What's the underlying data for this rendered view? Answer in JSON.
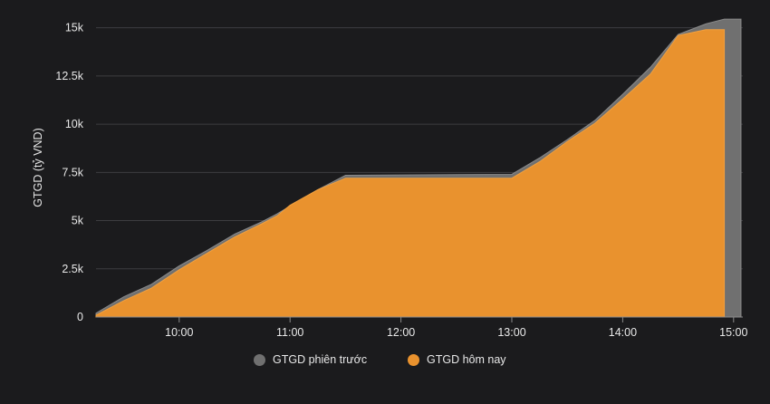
{
  "chart_data": {
    "type": "area",
    "ylabel": "GTGD (tỷ VND)",
    "y_ticks": [
      "0",
      "2.5k",
      "5k",
      "7.5k",
      "10k",
      "12.5k",
      "15k"
    ],
    "y_tick_values": [
      0,
      2500,
      5000,
      7500,
      10000,
      12500,
      15000
    ],
    "x_ticks": [
      "10:00",
      "11:00",
      "12:00",
      "13:00",
      "14:00",
      "15:00"
    ],
    "x_tick_values": [
      "10:00",
      "11:00",
      "12:00",
      "13:00",
      "14:00",
      "15:00"
    ],
    "x_range": [
      "09:15",
      "15:05"
    ],
    "y_range": [
      0,
      15500
    ],
    "grid": true,
    "legend_position": "bottom",
    "series": [
      {
        "name": "GTGD phiên trước",
        "color": "#707070",
        "x": [
          "09:15",
          "09:30",
          "09:45",
          "10:00",
          "10:15",
          "10:30",
          "10:45",
          "10:53",
          "11:00",
          "11:15",
          "11:30",
          "13:00",
          "13:15",
          "13:30",
          "13:45",
          "14:00",
          "14:15",
          "14:30",
          "14:45",
          "14:55",
          "14:56",
          "15:00",
          "15:04"
        ],
        "y": [
          200,
          1050,
          1700,
          2650,
          3450,
          4300,
          4950,
          5350,
          5750,
          6600,
          7350,
          7400,
          8250,
          9200,
          10200,
          11550,
          12950,
          14650,
          15200,
          15450,
          15450,
          15450,
          15450
        ]
      },
      {
        "name": "GTGD hôm nay",
        "color": "#e9922e",
        "x": [
          "09:15",
          "09:30",
          "09:45",
          "10:00",
          "10:15",
          "10:30",
          "10:45",
          "10:53",
          "11:00",
          "11:15",
          "11:30",
          "13:00",
          "13:15",
          "13:30",
          "13:45",
          "14:00",
          "14:15",
          "14:30",
          "14:45",
          "14:55"
        ],
        "y": [
          100,
          850,
          1500,
          2450,
          3300,
          4150,
          4850,
          5250,
          5800,
          6600,
          7200,
          7200,
          8050,
          9100,
          10050,
          11300,
          12600,
          14600,
          14900,
          14900
        ]
      }
    ]
  }
}
